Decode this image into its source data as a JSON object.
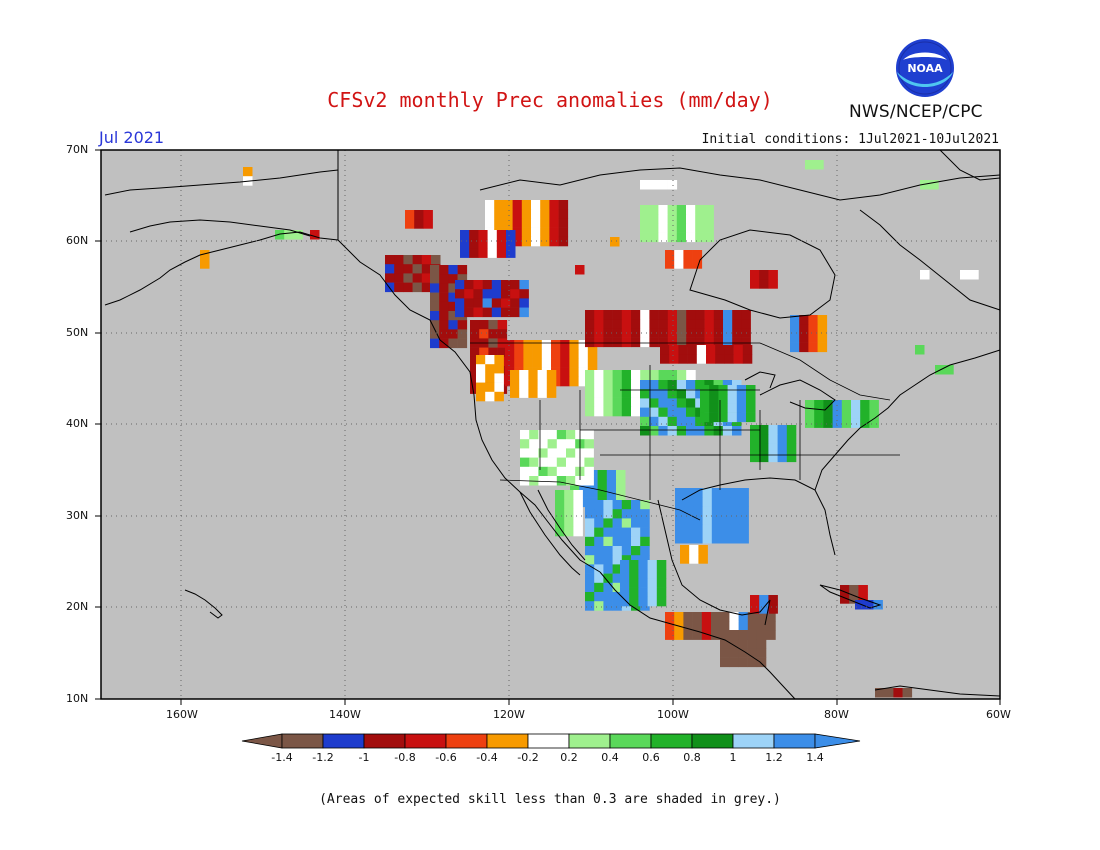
{
  "title": "CFSv2 monthly Prec anomalies (mm/day)",
  "org": "NWS/NCEP/CPC",
  "logo_text": "NOAA",
  "month": "Jul 2021",
  "initial_conditions": "Initial conditions: 1Jul2021-10Jul2021",
  "lat_labels": [
    "70N",
    "60N",
    "50N",
    "40N",
    "30N",
    "20N",
    "10N"
  ],
  "lon_labels": [
    "160W",
    "140W",
    "120W",
    "100W",
    "80W",
    "60W"
  ],
  "colorbar": {
    "colors": [
      "#7b5646",
      "#1e3ccd",
      "#a20d0d",
      "#c81010",
      "#ee4010",
      "#f79a00",
      "#ffffff",
      "#9ff08e",
      "#5ad85a",
      "#22b22a",
      "#11901a",
      "#9dd3f7",
      "#3c8ee8"
    ],
    "low_color": "#7b5646",
    "high_color": "#3c8ee8",
    "ticks": [
      "-1.4",
      "-1.2",
      "-1",
      "-0.8",
      "-0.6",
      "-0.4",
      "-0.2",
      "0.2",
      "0.4",
      "0.6",
      "0.8",
      "1",
      "1.2",
      "1.4"
    ]
  },
  "note": "(Areas of expected skill less than 0.3 are shaded in grey.)",
  "map_colors": {
    "ocean_grey": "#c0c0c0",
    "coast": "#000000"
  }
}
